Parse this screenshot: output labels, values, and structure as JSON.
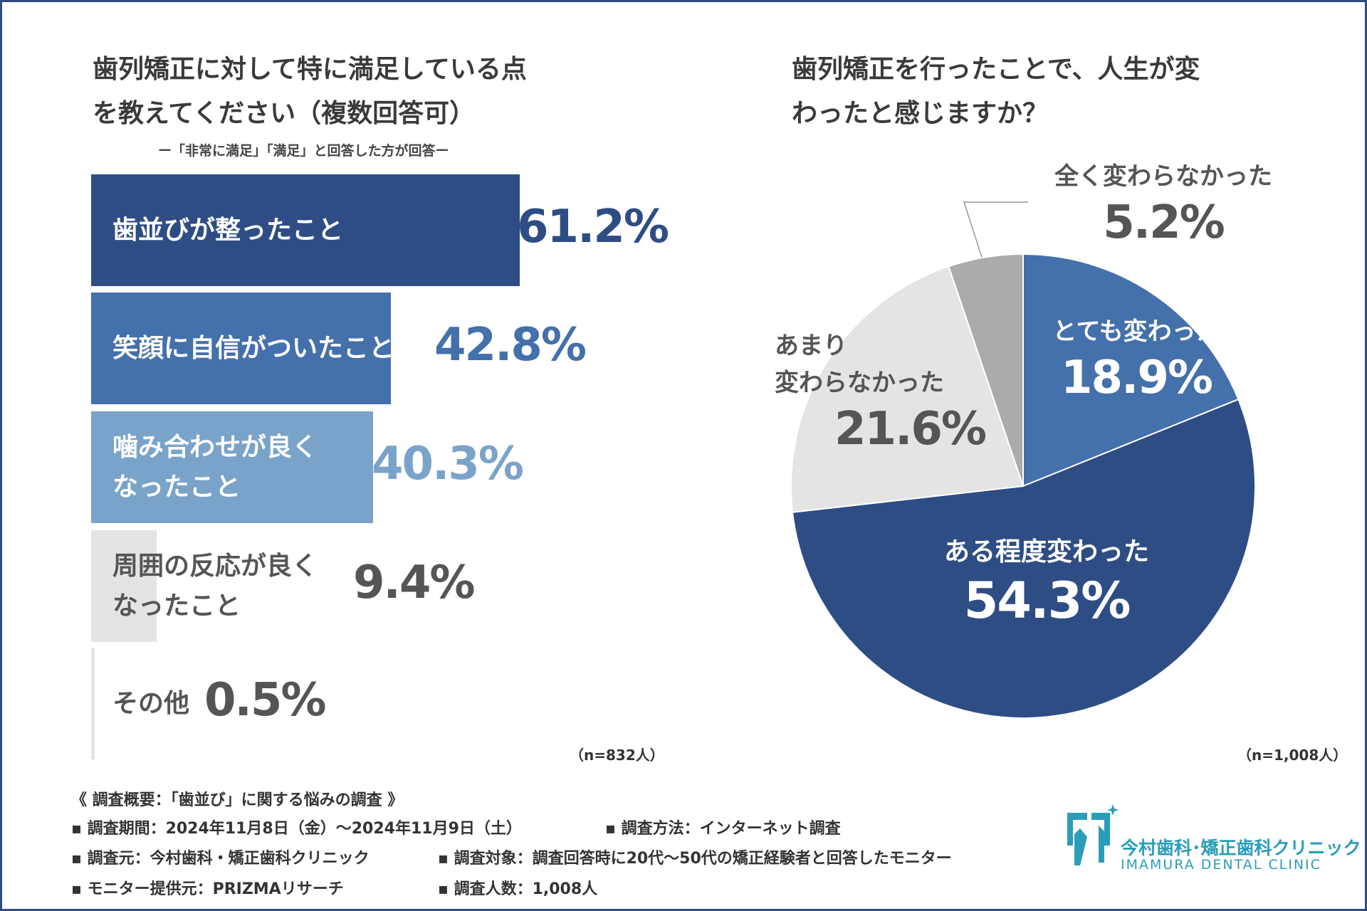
{
  "bar_section": {
    "title_line1": "歯列矯正に対して特に満足している点",
    "title_line2": "を教えてください（複数回答可）",
    "subnote": "ー「非常に満足」「満足」と回答した方が回答ー",
    "n_note": "（n=832人）"
  },
  "pie_section": {
    "title_line1": "歯列矯正を行ったことで、人生が変",
    "title_line2": "わったと感じますか？",
    "n_note": "（n=1,008人）"
  },
  "survey": {
    "heading": "《 調査概要：「歯並び」に関する悩みの調査 》",
    "line1a": "▪ 調査期間：2024年11月8日（金）〜2024年11月9日（土）",
    "line1b": "▪ 調査方法：インターネット調査",
    "line2a": "▪ 調査元：今村歯科・矯正歯科クリニック",
    "line2b": "▪ 調査対象：調査回答時に20代〜50代の矯正経験者と回答したモニター",
    "line3a": "▪ モニター提供元：PRIZMAリサーチ",
    "line3b": "▪ 調査人数：1,008人"
  },
  "logo": {
    "name_ja": "今村歯科･矯正歯科クリニック",
    "name_en": "IMAMURA DENTAL CLINIC"
  },
  "chart_data": [
    {
      "type": "bar",
      "orientation": "horizontal",
      "title": "歯列矯正に対して特に満足している点を教えてください（複数回答可）",
      "categories": [
        "歯並びが整ったこと",
        "笑顔に自信がついたこと",
        "噛み合わせが良くなったこと",
        "周囲の反応が良くなったこと",
        "その他"
      ],
      "label_lines": [
        [
          "歯並びが整ったこと"
        ],
        [
          "笑顔に自信がついたこと"
        ],
        [
          "噛み合わせが良く",
          "なったこと"
        ],
        [
          "周囲の反応が良く",
          "なったこと"
        ],
        [
          "その他"
        ]
      ],
      "values": [
        61.2,
        42.8,
        40.3,
        9.4,
        0.5
      ],
      "value_labels": [
        "61.2%",
        "42.8%",
        "40.3%",
        "9.4%",
        "0.5%"
      ],
      "colors": [
        "#2e4d84",
        "#4470ab",
        "#7aa3c9",
        "#e4e4e4",
        "#e4e4e4"
      ],
      "label_colors": [
        "#ffffff",
        "#ffffff",
        "#ffffff",
        "#555555",
        "#555555"
      ],
      "value_colors": [
        "#2e4d84",
        "#4470ab",
        "#7aa3c9",
        "#555555",
        "#555555"
      ],
      "unit": "%",
      "xlim": [
        0,
        100
      ]
    },
    {
      "type": "pie",
      "title": "歯列矯正を行ったことで、人生が変わったと感じますか？",
      "categories": [
        "とても変わった",
        "ある程度変わった",
        "あまり変わらなかった",
        "全く変わらなかった"
      ],
      "values": [
        18.9,
        54.3,
        21.6,
        5.2
      ],
      "value_labels": [
        "18.9%",
        "54.3%",
        "21.6%",
        "5.2%"
      ],
      "label_lines": [
        [
          "とても変わった"
        ],
        [
          "ある程度変わった"
        ],
        [
          "あまり",
          "変わらなかった"
        ],
        [
          "全く変わらなかった"
        ]
      ],
      "colors": [
        "#4470ab",
        "#2e4d84",
        "#e4e4e4",
        "#ababab"
      ],
      "text_colors": [
        "#ffffff",
        "#ffffff",
        "#555555",
        "#555555"
      ]
    }
  ]
}
